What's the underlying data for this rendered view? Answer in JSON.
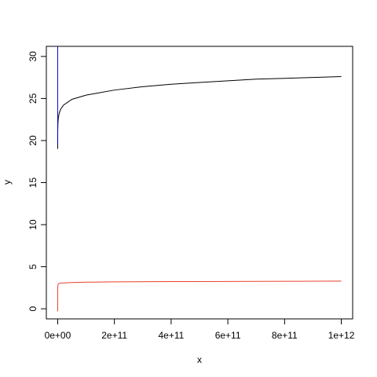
{
  "chart_data": {
    "type": "line",
    "title": "",
    "xlabel": "x",
    "ylabel": "y",
    "xlim": [
      -40000000000,
      1040000000000
    ],
    "ylim": [
      -1.2,
      31.2
    ],
    "x_ticks": [
      0,
      200000000000,
      400000000000,
      600000000000,
      800000000000,
      1000000000000
    ],
    "x_tick_labels": [
      "0e+00",
      "2e+11",
      "4e+11",
      "6e+11",
      "8e+11",
      "1e+12"
    ],
    "y_ticks": [
      0,
      5,
      10,
      15,
      20,
      25,
      30
    ],
    "y_tick_labels": [
      "0",
      "5",
      "10",
      "15",
      "20",
      "25",
      "30"
    ],
    "grid": false,
    "series": [
      {
        "color": "#000000",
        "x": [
          0,
          1000000,
          10000000,
          100000000,
          500000000,
          1000000000,
          2000000000,
          5000000000,
          10000000000,
          20000000000,
          50000000000,
          100000000000,
          200000000000,
          300000000000,
          400000000000,
          500000000000,
          600000000000,
          700000000000,
          800000000000,
          900000000000,
          1000000000000
        ],
        "y": [
          19.0,
          19.5,
          20.2,
          21.0,
          21.6,
          22.1,
          22.6,
          23.2,
          23.7,
          24.2,
          24.9,
          25.4,
          26.0,
          26.4,
          26.7,
          26.9,
          27.1,
          27.3,
          27.4,
          27.5,
          27.6
        ]
      },
      {
        "color": "#e8412f",
        "x": [
          0,
          1000000,
          10000000,
          100000000,
          1000000000,
          5000000000,
          10000000000,
          50000000000,
          100000000000,
          200000000000,
          400000000000,
          600000000000,
          800000000000,
          1000000000000
        ],
        "y": [
          -0.3,
          0.6,
          1.5,
          2.4,
          2.9,
          3.02,
          3.06,
          3.12,
          3.16,
          3.2,
          3.23,
          3.25,
          3.27,
          3.29
        ]
      },
      {
        "color": "#0000cd",
        "x": [
          0,
          0
        ],
        "y": [
          19.5,
          31.2
        ]
      }
    ]
  }
}
